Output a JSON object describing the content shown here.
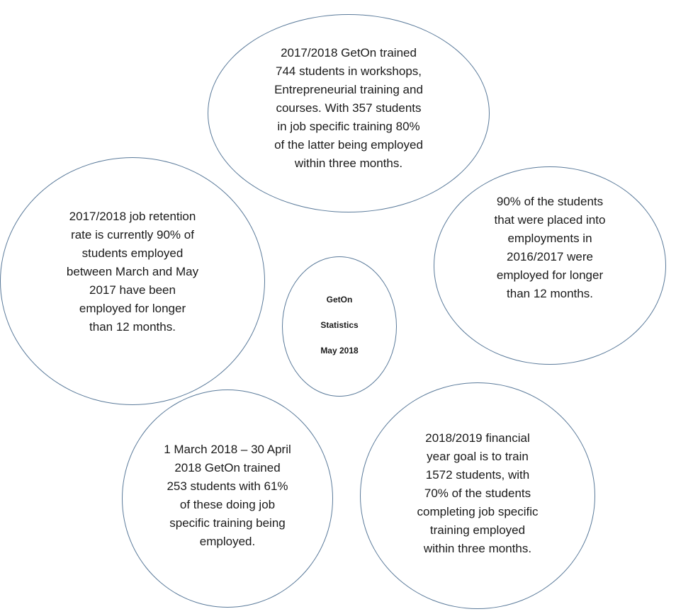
{
  "diagram": {
    "center": {
      "lines": "GetOn\nStatistics\nMay 2018"
    },
    "top": {
      "text": "2017/2018 GetOn trained\n744 students in workshops,\nEntrepreneurial training and\ncourses. With 357 students\nin job specific training 80%\nof the latter being employed\nwithin three months."
    },
    "left": {
      "text": "2017/2018 job retention\nrate is currently 90% of\nstudents employed\nbetween March and May\n2017 have been\nemployed for longer\nthan 12 months."
    },
    "right": {
      "text": "90% of the students\nthat were placed into\nemployments in\n2016/2017 were\nemployed for longer\nthan 12 months."
    },
    "bottom_left": {
      "text": "1 March 2018 – 30 April\n2018 GetOn trained\n253 students with 61%\nof these doing job\nspecific training being\nemployed."
    },
    "bottom_right": {
      "text": "2018/2019 financial\nyear goal is to train\n1572 students, with\n70% of the students\ncompleting job specific\ntraining employed\nwithin three months."
    },
    "colors": {
      "outline": "#5a7a9a",
      "text": "#1a1a1a",
      "background": "#ffffff"
    }
  }
}
